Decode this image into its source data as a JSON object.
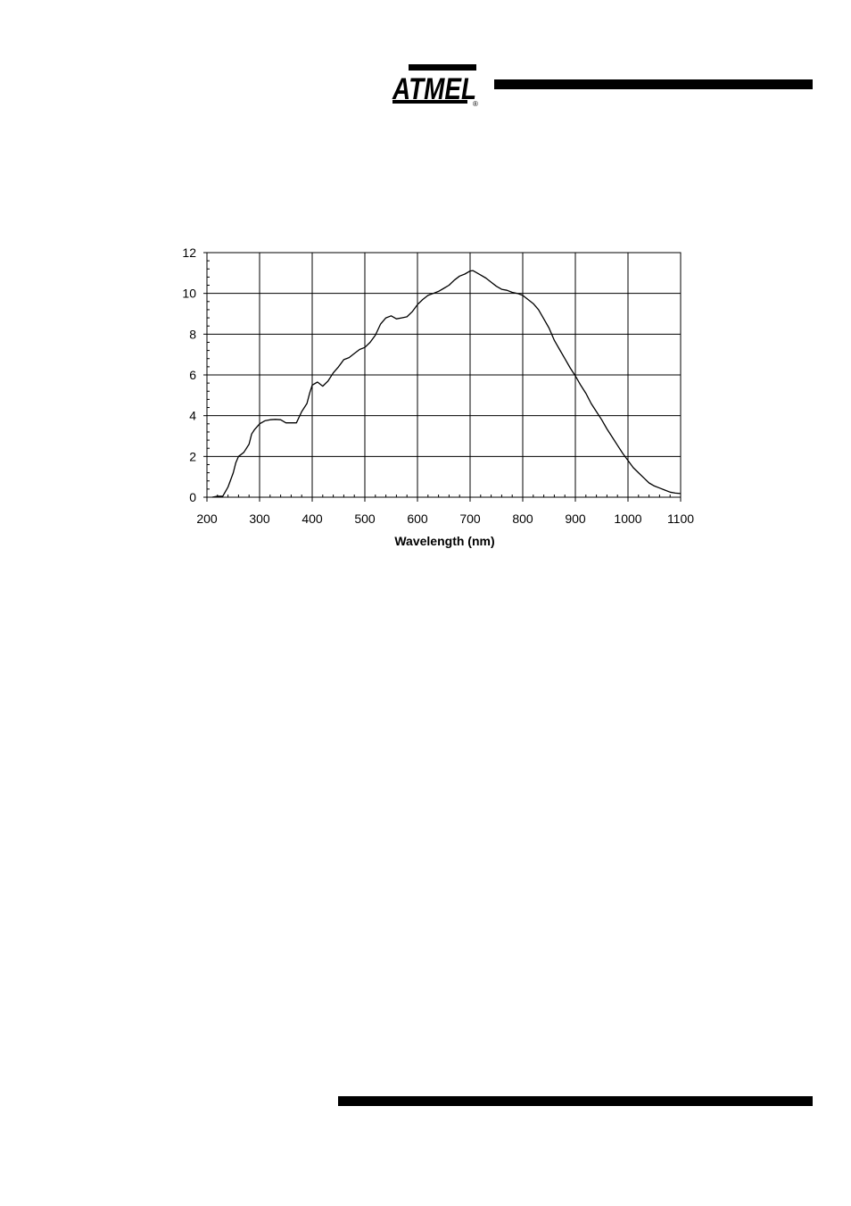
{
  "header": {
    "logo_text": "ATMEL",
    "logo_mark": "®"
  },
  "chart_data": {
    "type": "line",
    "title": "",
    "xlabel": "Wavelength (nm)",
    "ylabel": "",
    "xlim": [
      200,
      1100
    ],
    "ylim": [
      0,
      12
    ],
    "grid": true,
    "x_ticks": [
      200,
      300,
      400,
      500,
      600,
      700,
      800,
      900,
      1000,
      1100
    ],
    "y_ticks": [
      0,
      2,
      4,
      6,
      8,
      10,
      12
    ],
    "series": [
      {
        "color": "#000000",
        "points": [
          [
            210,
            0.0
          ],
          [
            220,
            0.05
          ],
          [
            230,
            0.05
          ],
          [
            240,
            0.5
          ],
          [
            250,
            1.2
          ],
          [
            255,
            1.7
          ],
          [
            260,
            2.0
          ],
          [
            270,
            2.2
          ],
          [
            280,
            2.6
          ],
          [
            285,
            3.1
          ],
          [
            290,
            3.3
          ],
          [
            300,
            3.6
          ],
          [
            310,
            3.75
          ],
          [
            320,
            3.8
          ],
          [
            330,
            3.82
          ],
          [
            340,
            3.8
          ],
          [
            350,
            3.65
          ],
          [
            360,
            3.65
          ],
          [
            370,
            3.65
          ],
          [
            380,
            4.2
          ],
          [
            390,
            4.6
          ],
          [
            395,
            5.1
          ],
          [
            400,
            5.5
          ],
          [
            410,
            5.65
          ],
          [
            420,
            5.45
          ],
          [
            430,
            5.7
          ],
          [
            440,
            6.1
          ],
          [
            450,
            6.4
          ],
          [
            460,
            6.75
          ],
          [
            470,
            6.85
          ],
          [
            480,
            7.05
          ],
          [
            490,
            7.25
          ],
          [
            500,
            7.35
          ],
          [
            510,
            7.6
          ],
          [
            520,
            7.95
          ],
          [
            530,
            8.5
          ],
          [
            540,
            8.8
          ],
          [
            550,
            8.9
          ],
          [
            560,
            8.75
          ],
          [
            570,
            8.8
          ],
          [
            580,
            8.85
          ],
          [
            590,
            9.1
          ],
          [
            600,
            9.45
          ],
          [
            610,
            9.7
          ],
          [
            620,
            9.9
          ],
          [
            630,
            10.0
          ],
          [
            640,
            10.1
          ],
          [
            650,
            10.25
          ],
          [
            660,
            10.4
          ],
          [
            670,
            10.65
          ],
          [
            680,
            10.85
          ],
          [
            690,
            10.95
          ],
          [
            700,
            11.1
          ],
          [
            705,
            11.12
          ],
          [
            710,
            11.05
          ],
          [
            720,
            10.9
          ],
          [
            730,
            10.75
          ],
          [
            740,
            10.55
          ],
          [
            750,
            10.35
          ],
          [
            760,
            10.2
          ],
          [
            770,
            10.15
          ],
          [
            780,
            10.05
          ],
          [
            790,
            10.0
          ],
          [
            800,
            9.9
          ],
          [
            810,
            9.7
          ],
          [
            820,
            9.5
          ],
          [
            830,
            9.2
          ],
          [
            840,
            8.75
          ],
          [
            850,
            8.3
          ],
          [
            860,
            7.7
          ],
          [
            870,
            7.25
          ],
          [
            880,
            6.8
          ],
          [
            890,
            6.35
          ],
          [
            900,
            5.95
          ],
          [
            910,
            5.5
          ],
          [
            920,
            5.1
          ],
          [
            930,
            4.6
          ],
          [
            940,
            4.2
          ],
          [
            950,
            3.8
          ],
          [
            960,
            3.35
          ],
          [
            970,
            2.95
          ],
          [
            980,
            2.55
          ],
          [
            990,
            2.15
          ],
          [
            1000,
            1.8
          ],
          [
            1010,
            1.45
          ],
          [
            1020,
            1.2
          ],
          [
            1030,
            0.95
          ],
          [
            1040,
            0.7
          ],
          [
            1050,
            0.55
          ],
          [
            1060,
            0.45
          ],
          [
            1070,
            0.35
          ],
          [
            1080,
            0.25
          ],
          [
            1090,
            0.2
          ],
          [
            1100,
            0.18
          ]
        ]
      }
    ]
  }
}
